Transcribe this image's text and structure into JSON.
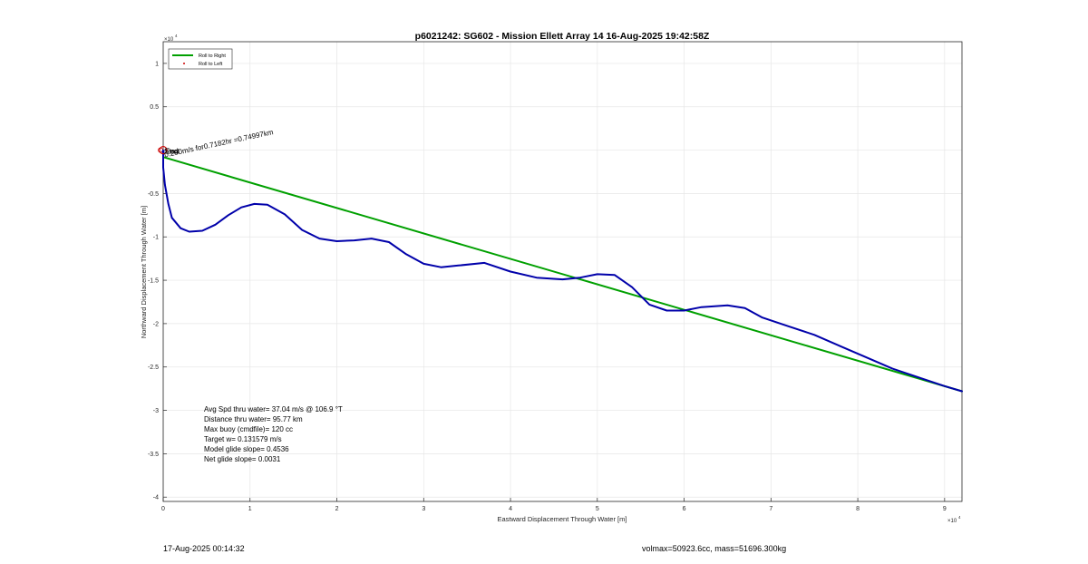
{
  "chart_data": {
    "type": "line",
    "title": "p6021242: SG602 - Mission Ellett Array 14 16-Aug-2025 19:42:58Z",
    "xlabel": "Eastward Displacement Through Water [m]",
    "ylabel": "Northward Displacement Through Water [m]",
    "x_exponent_label": "×10",
    "x_exponent_power": "4",
    "y_exponent_label": "×10",
    "y_exponent_power": "4",
    "xlim": [
      0,
      9.2
    ],
    "ylim": [
      -4.05,
      1.25
    ],
    "x_scale": 10000,
    "y_scale": 10000,
    "grid": true,
    "x_ticks": [
      0,
      1,
      2,
      3,
      4,
      5,
      6,
      7,
      8,
      9
    ],
    "x_tick_labels": [
      "0",
      "1",
      "2",
      "3",
      "4",
      "5",
      "6",
      "7",
      "8",
      "9"
    ],
    "y_ticks": [
      1,
      0.5,
      -0.5,
      -1,
      -1.5,
      -2,
      -2.5,
      -3,
      -3.5,
      -4
    ],
    "y_tick_labels": [
      "1",
      "0.5",
      "-0.5",
      "-1",
      "-1.5",
      "-2",
      "-2.5",
      "-3",
      "-3.5",
      "-4"
    ],
    "legend": {
      "placement": "top-left",
      "entries": [
        {
          "label": "Roll to Right",
          "color": "#00a000",
          "style": "line"
        },
        {
          "label": "Roll to Left",
          "color": "#cc0000",
          "style": "dot"
        }
      ]
    },
    "series": [
      {
        "color": "#00a000",
        "points": [
          [
            0.0,
            -0.08
          ],
          [
            9.2,
            -2.78
          ]
        ]
      },
      {
        "color": "#0000aa",
        "points": [
          [
            0.0,
            -0.02
          ],
          [
            0.0,
            -0.2
          ],
          [
            0.02,
            -0.4
          ],
          [
            0.06,
            -0.62
          ],
          [
            0.1,
            -0.78
          ],
          [
            0.2,
            -0.9
          ],
          [
            0.3,
            -0.94
          ],
          [
            0.45,
            -0.93
          ],
          [
            0.6,
            -0.86
          ],
          [
            0.75,
            -0.75
          ],
          [
            0.9,
            -0.66
          ],
          [
            1.05,
            -0.62
          ],
          [
            1.2,
            -0.63
          ],
          [
            1.4,
            -0.74
          ],
          [
            1.6,
            -0.92
          ],
          [
            1.8,
            -1.02
          ],
          [
            2.0,
            -1.05
          ],
          [
            2.2,
            -1.04
          ],
          [
            2.4,
            -1.02
          ],
          [
            2.6,
            -1.06
          ],
          [
            2.8,
            -1.2
          ],
          [
            3.0,
            -1.31
          ],
          [
            3.2,
            -1.35
          ],
          [
            3.4,
            -1.33
          ],
          [
            3.7,
            -1.3
          ],
          [
            4.0,
            -1.4
          ],
          [
            4.3,
            -1.47
          ],
          [
            4.6,
            -1.49
          ],
          [
            4.8,
            -1.47
          ],
          [
            5.0,
            -1.43
          ],
          [
            5.2,
            -1.44
          ],
          [
            5.4,
            -1.58
          ],
          [
            5.6,
            -1.78
          ],
          [
            5.8,
            -1.85
          ],
          [
            6.0,
            -1.85
          ],
          [
            6.2,
            -1.81
          ],
          [
            6.5,
            -1.79
          ],
          [
            6.7,
            -1.82
          ],
          [
            6.9,
            -1.93
          ],
          [
            7.2,
            -2.03
          ],
          [
            7.5,
            -2.13
          ],
          [
            7.8,
            -2.26
          ],
          [
            8.1,
            -2.39
          ],
          [
            8.4,
            -2.52
          ],
          [
            8.7,
            -2.62
          ],
          [
            9.0,
            -2.72
          ],
          [
            9.2,
            -2.78
          ]
        ]
      }
    ],
    "markers": [
      {
        "x": 0.0,
        "y": 0.0,
        "color": "#cc0000",
        "shape": "circle"
      }
    ],
    "annotations": [
      {
        "text": "0.290m/s for0.7182hr =0.74997km",
        "x": 0.02,
        "y": -0.02,
        "rotation": -12
      }
    ],
    "overlapping_labels": [
      "Start",
      "End"
    ],
    "stats": [
      "Avg Spd thru water= 37.04 m/s @ 106.9 °T",
      "Distance thru water= 95.77 km",
      "Max buoy (cmdfile)= 120 cc",
      "Target w= 0.131579 m/s",
      "Model glide slope= 0.4536",
      "Net glide slope= 0.0031"
    ]
  },
  "footer": {
    "timestamp": "17-Aug-2025 00:14:32",
    "volmass": "volmax=50923.6cc, mass=51696.300kg"
  }
}
